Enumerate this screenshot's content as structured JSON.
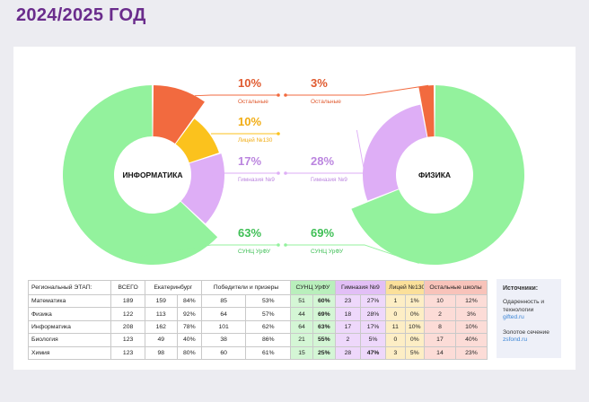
{
  "title": "2024/2025 ГОД",
  "chart_data": [
    {
      "type": "pie",
      "center_label": "ИНФОРМАТИКА",
      "slices": [
        {
          "label": "Остальные",
          "value": 10,
          "pct": "10%",
          "color": "#f26a3f",
          "pct_color": "#e05a2f"
        },
        {
          "label": "Лицей №130",
          "value": 10,
          "pct": "10%",
          "color": "#fbc21d",
          "pct_color": "#f1ac12"
        },
        {
          "label": "Гимназия №9",
          "value": 17,
          "pct": "17%",
          "color": "#deaef6",
          "pct_color": "#bb85df"
        },
        {
          "label": "СУНЦ УрФУ",
          "value": 63,
          "pct": "63%",
          "color": "#93f29d",
          "pct_color": "#3ebf55"
        }
      ]
    },
    {
      "type": "pie",
      "center_label": "ФИЗИКА",
      "slices": [
        {
          "label": "Остальные",
          "value": 3,
          "pct": "3%",
          "color": "#f26a3f",
          "pct_color": "#e05a2f"
        },
        {
          "label": "Гимназия №9",
          "value": 28,
          "pct": "28%",
          "color": "#deaef6",
          "pct_color": "#bb85df"
        },
        {
          "label": "СУНЦ УрФУ",
          "value": 69,
          "pct": "69%",
          "color": "#93f29d",
          "pct_color": "#3ebf55"
        }
      ]
    }
  ],
  "table": {
    "headers": [
      "Региональный ЭТАП:",
      "ВСЕГО",
      "Екатеринбург",
      "Победители и призеры",
      "СУНЦ УрФУ",
      "Гимназия №9",
      "Лицей №130",
      "Остальные школы"
    ],
    "rows": [
      [
        "Математика",
        "189",
        "159",
        "84%",
        "85",
        "53%",
        "51",
        "60%",
        "23",
        "27%",
        "1",
        "1%",
        "10",
        "12%"
      ],
      [
        "Физика",
        "122",
        "113",
        "92%",
        "64",
        "57%",
        "44",
        "69%",
        "18",
        "28%",
        "0",
        "0%",
        "2",
        "3%"
      ],
      [
        "Информатика",
        "208",
        "162",
        "78%",
        "101",
        "62%",
        "64",
        "63%",
        "17",
        "17%",
        "11",
        "10%",
        "8",
        "10%"
      ],
      [
        "Биология",
        "123",
        "49",
        "40%",
        "38",
        "86%",
        "21",
        "55%",
        "2",
        "5%",
        "0",
        "0%",
        "17",
        "40%"
      ],
      [
        "Химия",
        "123",
        "98",
        "80%",
        "60",
        "61%",
        "15",
        "25%",
        "28",
        "47%",
        "3",
        "5%",
        "14",
        "23%"
      ]
    ]
  },
  "sources": {
    "title": "Источники:",
    "items": [
      {
        "text": "Одаренность и технологии",
        "link": "gifted.ru"
      },
      {
        "text": "Золотое сечение",
        "link": "zsfond.ru"
      }
    ]
  }
}
